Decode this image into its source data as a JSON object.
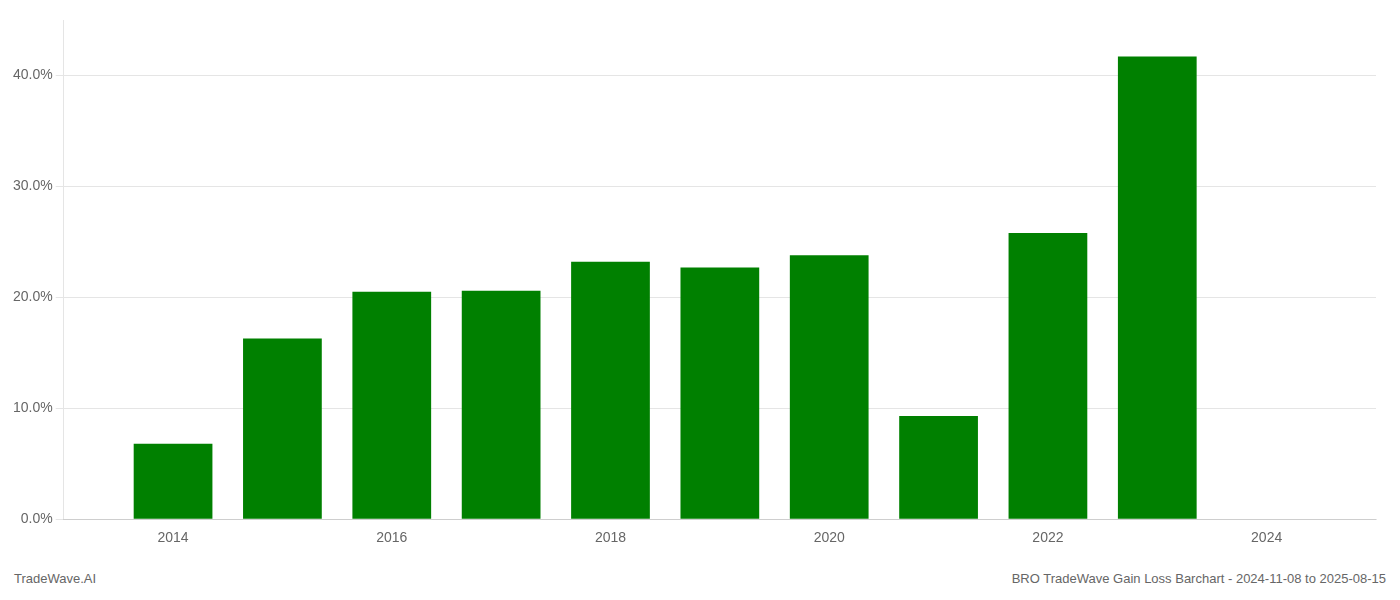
{
  "chart_data": {
    "type": "bar",
    "x": [
      2014,
      2015,
      2016,
      2017,
      2018,
      2019,
      2020,
      2021,
      2022,
      2023
    ],
    "values": [
      0.068,
      0.163,
      0.205,
      0.206,
      0.232,
      0.227,
      0.238,
      0.093,
      0.258,
      0.417
    ],
    "color": "#008000",
    "xlim": [
      2013.0,
      2025.0
    ],
    "xticks": [
      2014,
      2016,
      2018,
      2020,
      2022,
      2024
    ],
    "ylim": [
      0,
      0.45
    ],
    "yticks": [
      {
        "value": 0.0,
        "label": "0.0%"
      },
      {
        "value": 0.1,
        "label": "10.0%"
      },
      {
        "value": 0.2,
        "label": "20.0%"
      },
      {
        "value": 0.3,
        "label": "30.0%"
      },
      {
        "value": 0.4,
        "label": "40.0%"
      }
    ],
    "grid": true,
    "annotations": [
      "TradeWave.AI",
      "BRO TradeWave Gain Loss Barchart - 2024-11-08 to 2025-08-15"
    ]
  }
}
